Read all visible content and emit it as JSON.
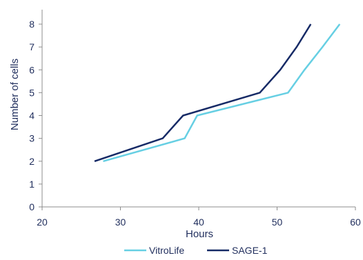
{
  "chart_data": {
    "type": "line",
    "title": "",
    "xlabel": "Hours",
    "ylabel": "Number of cells",
    "xlim": [
      20,
      60
    ],
    "ylim": [
      0,
      8
    ],
    "xticks": [
      "20",
      "30",
      "40",
      "50",
      "60"
    ],
    "yticks": [
      "0",
      "1",
      "2",
      "3",
      "4",
      "5",
      "6",
      "7",
      "8"
    ],
    "grid": false,
    "legend_position": "bottom",
    "series": [
      {
        "name": "VitroLife",
        "color": "#66cfe3",
        "points": [
          [
            27.8,
            2
          ],
          [
            38.2,
            3
          ],
          [
            39.8,
            4
          ],
          [
            51.4,
            5
          ],
          [
            53.5,
            6
          ],
          [
            55.8,
            7
          ],
          [
            58.0,
            8
          ]
        ]
      },
      {
        "name": "SAGE-1",
        "color": "#162a66",
        "points": [
          [
            26.7,
            2
          ],
          [
            35.4,
            3
          ],
          [
            38.0,
            4
          ],
          [
            47.8,
            5
          ],
          [
            50.4,
            6
          ],
          [
            52.5,
            7
          ],
          [
            54.3,
            8
          ]
        ]
      }
    ]
  }
}
